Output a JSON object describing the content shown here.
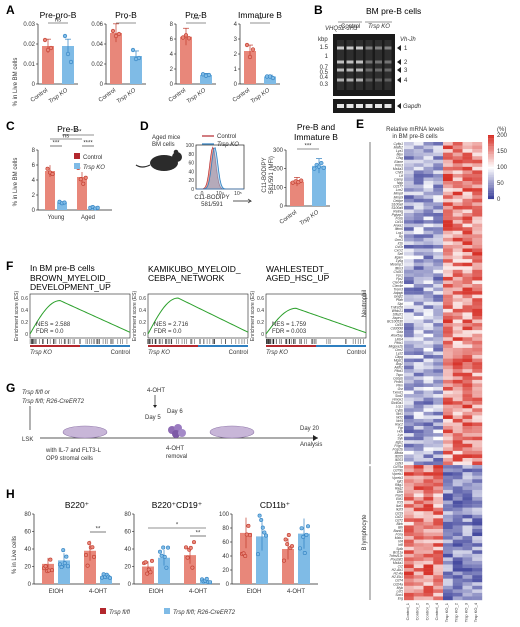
{
  "panels": {
    "A": {
      "letter": "A",
      "ylabel": "% in Live BM cells",
      "groups": [
        "Control",
        "Trsp KO"
      ],
      "subpanels": [
        {
          "title": "Pre-pro-B",
          "sig": "ns",
          "ticks": [
            "0",
            "0.01",
            "0.02",
            "0.03"
          ],
          "ymax": 0.03,
          "values": [
            0.019,
            0.019
          ],
          "points": [
            [
              0.022,
              0.017,
              0.018
            ],
            [
              0.024,
              0.015,
              0.011
            ]
          ]
        },
        {
          "title": "Pro-B",
          "sig": "*",
          "ticks": [
            "0",
            "0.02",
            "0.04",
            "0.06"
          ],
          "ymax": 0.06,
          "values": [
            0.051,
            0.028
          ],
          "points": [
            [
              0.053,
              0.048,
              0.05
            ],
            [
              0.034,
              0.025,
              0.026
            ]
          ]
        },
        {
          "title": "Pre-B",
          "sig": "***",
          "ticks": [
            "0",
            "2",
            "4",
            "6",
            "8"
          ],
          "ymax": 8,
          "values": [
            6.3,
            1.2
          ],
          "points": [
            [
              6.2,
              6.5,
              6.1
            ],
            [
              1.3,
              1.1,
              1.2
            ]
          ]
        },
        {
          "title": "Immature B",
          "sig": "**",
          "ticks": [
            "0",
            "1",
            "2",
            "3",
            "4"
          ],
          "ymax": 4,
          "values": [
            2.2,
            0.5
          ],
          "points": [
            [
              2.6,
              1.8,
              2.3
            ],
            [
              0.5,
              0.5,
              0.4
            ]
          ]
        }
      ]
    },
    "B": {
      "letter": "B",
      "primer": "VHQ52-JH3",
      "title": "BM pre-B cells",
      "group_control": "Control",
      "group_ko": "Trsp KO",
      "unit": "kbp",
      "markers": [
        "1.5",
        "1",
        "0.7",
        "0.5",
        "0.4",
        "0.3"
      ],
      "band_labels": [
        "1",
        "2",
        "3",
        "4"
      ],
      "gene_label": "Vh-Jh",
      "gapdh_label": "Gapdh"
    },
    "C": {
      "letter": "C",
      "title": "Pre-B",
      "ylabel": "% in Live BM cells",
      "ticks": [
        "0",
        "2",
        "4",
        "6",
        "8"
      ],
      "ymax": 8,
      "categories": [
        "Young",
        "Aged"
      ],
      "sig": [
        "***",
        "ns",
        "****"
      ],
      "legend": [
        "Control",
        "Trsp KO"
      ],
      "values": [
        [
          5.2,
          1.0
        ],
        [
          4.4,
          0.3
        ]
      ],
      "points": [
        [
          [
            5.5,
            5.0,
            4.8
          ],
          [
            1.1,
            0.9,
            1.0
          ]
        ],
        [
          [
            5.6,
            4.1,
            3.5,
            4.3
          ],
          [
            0.3,
            0.4,
            0.2,
            0.3
          ]
        ]
      ]
    },
    "D": {
      "letter": "D",
      "mouse_caption": [
        "Aged mice",
        "BM cells"
      ],
      "legend": [
        "Control",
        "Trsp KO"
      ],
      "hist_xlabel": [
        "C11-BODIPY",
        "581/591"
      ],
      "hist_xticks": [
        "0",
        "10⁴",
        "10⁵"
      ],
      "hist_yticks": [
        "0",
        "20",
        "40",
        "60",
        "80",
        "100"
      ],
      "bar_title": [
        "Pre-B and",
        "Immature B"
      ],
      "bar_ylabel": [
        "C11-BODIPY",
        "581/591 (MFI)"
      ],
      "bar_ticks": [
        "0",
        "100",
        "200",
        "300"
      ],
      "bar_ymax": 300,
      "bar_groups": [
        "Control",
        "Trsp KO"
      ],
      "bar_sig": "***",
      "bar_values": [
        130,
        215
      ],
      "bar_points": [
        [
          125,
          132,
          128,
          136
        ],
        [
          200,
          220,
          210,
          230,
          205
        ]
      ]
    },
    "E": {
      "letter": "E",
      "title": [
        "Relative mRNA levels",
        "in BM pre-B cells"
      ],
      "unit": "(%)",
      "scale_ticks": [
        "200",
        "150",
        "100",
        "50",
        "0"
      ],
      "groups": [
        "Neutrophil",
        "B lymphocyte"
      ],
      "samples": [
        "Control_1",
        "Control_2",
        "Control_3",
        "Control_4",
        "Trsp KO_1",
        "Trsp KO_2",
        "Trsp KO_3",
        "Trsp KO_4"
      ],
      "neutrophil_genes": [
        "Cyfip1",
        "Mafb2",
        "Lyz1",
        "Mpo",
        "Ctsg",
        "Elane",
        "Prtn3",
        "Ms4a3",
        "Chil3",
        "Ltf",
        "Camp",
        "Ngp",
        "Cd177",
        "Lcn2",
        "Mmp8",
        "Mmp9",
        "Cebpe",
        "S100a8",
        "S100a9",
        "Retnlg",
        "Pglyrp1",
        "Fcnb",
        "Cd14",
        "Anxa1",
        "Ifitm6",
        "Lrg1",
        "Hp",
        "Orm1",
        "Il1b",
        "Csf3r",
        "Cxcr2",
        "Sell",
        "Itgam",
        "Ly6g",
        "Mcemp1",
        "Ifitm3",
        "Chi3l1",
        "Fpr1",
        "Fpr2",
        "Clec4d",
        "Clec4e",
        "Trem3",
        "Adpgk",
        "Gngt2",
        "Ptafr",
        "Slpi",
        "Tnfrsf26",
        "Wfdc21",
        "Stfa2l1",
        "Asprv1",
        "BC100530",
        "Cd33",
        "Cd300ld",
        "Gda",
        "Alox5ap",
        "Lilrb4",
        "Pilrb1",
        "Mrgpra2b",
        "Cnn2",
        "Lyz2",
        "Capg",
        "Mgst1",
        "Arg2",
        "Aldh2",
        "Plbd1",
        "Tspo",
        "Cebpb",
        "Prdx5",
        "Pkm",
        "Gsr",
        "Txnrd1",
        "Sod2",
        "Hmox1",
        "Slc40a1",
        "Lcp1",
        "Cybb",
        "Ncf1",
        "Ncf2",
        "Ncf4",
        "Rac2",
        "Fgr",
        "Hck",
        "Lyn",
        "Syk",
        "Itgb2",
        "Fcgr3",
        "Fcgr2b",
        "Mnda",
        "Ifi205",
        "Ifi203",
        "Cd93"
      ],
      "b_genes": [
        "Cd79a",
        "Cd79b",
        "Vpreb1",
        "Vpreb3",
        "Igll1",
        "Rag1",
        "Rag2",
        "Dntt",
        "Pax5",
        "Ebf1",
        "Tcf3",
        "Ikzf1",
        "Ikzf3",
        "Cd19",
        "Cd22",
        "Cd72",
        "Blnk",
        "Btk",
        "Bank1",
        "Fcrla",
        "Mzb1",
        "Irf4",
        "Irf8",
        "Spib",
        "Bcl11a",
        "Tnfrsf13c",
        "Pou2af1",
        "Ms4a1",
        "Cr2",
        "H2-Ab1",
        "H2-Aa",
        "H2-Eb1",
        "Cd74",
        "Cd24a",
        "Myb",
        "Lef1",
        "Sox4",
        "Erg"
      ]
    },
    "F": {
      "letter": "F",
      "header": "In BM pre-B cells",
      "ylabel": "Enrichment score (ES)",
      "yticks": [
        "0.6",
        "0.4",
        "0.2",
        "0"
      ],
      "left_label": "Trsp KO",
      "right_label": "Control",
      "gsea": [
        {
          "name": [
            "BROWN_MYELOID_",
            "DEVELOPMENT_UP"
          ],
          "nes": "NES = 2.588",
          "fdr": "FDR = 0.0",
          "peak": 0.65
        },
        {
          "name": [
            "KAMIKUBO_MYELOID_",
            "CEBPA_NETWORK"
          ],
          "nes": "NES = 2.716",
          "fdr": "FDR = 0.0",
          "peak": 0.7
        },
        {
          "name": [
            "WAHLESTEDT_",
            "AGED_HSC_UP"
          ],
          "nes": "NES = 1.759",
          "fdr": "FDR = 0.003",
          "peak": 0.5
        }
      ]
    },
    "G": {
      "letter": "G",
      "genotype1": "Trsp fl/fl or",
      "genotype2": "Trsp fl/fl; R26-CreERT2",
      "lsk": "LSK",
      "culture": [
        "with IL-7 and FLT3-L",
        "OP9 stromal cells"
      ],
      "tx": "4-OHT",
      "day5": "Day 5",
      "day6": "Day 6",
      "removal": [
        "4-OHT",
        "removal"
      ],
      "day20": "Day 20",
      "analysis": "Analysis"
    },
    "H": {
      "letter": "H",
      "ylabel": "% in Live cells",
      "treatments": [
        "EtOH",
        "4-OHT"
      ],
      "legend": [
        "Trsp fl/fl",
        "Trsp fl/fl; R26-CreERT2"
      ],
      "subpanels": [
        {
          "title": "B220⁺",
          "ticks": [
            "0",
            "20",
            "40",
            "60",
            "80"
          ],
          "ymax": 80,
          "values": [
            23,
            27,
            38,
            8
          ],
          "sig": "**"
        },
        {
          "title": "B220⁺CD19⁺",
          "ticks": [
            "0",
            "20",
            "40",
            "60",
            "80"
          ],
          "ymax": 80,
          "values": [
            20,
            30,
            33,
            4
          ],
          "sig": [
            "*",
            "**"
          ]
        },
        {
          "title": "CD11b⁺",
          "ticks": [
            "0",
            "20",
            "40",
            "60",
            "80",
            "100"
          ],
          "ymax": 100,
          "values": [
            73,
            68,
            50,
            72
          ],
          "sig": ""
        }
      ]
    }
  },
  "colors": {
    "control": "#e8877a",
    "control_edge": "#c0392b",
    "ko": "#7fbbe6",
    "ko_edge": "#2e7fc0",
    "dark_red": "#b3272d",
    "heat_high": "#d73027",
    "heat_mid": "#ffffff",
    "heat_low": "#313695"
  }
}
